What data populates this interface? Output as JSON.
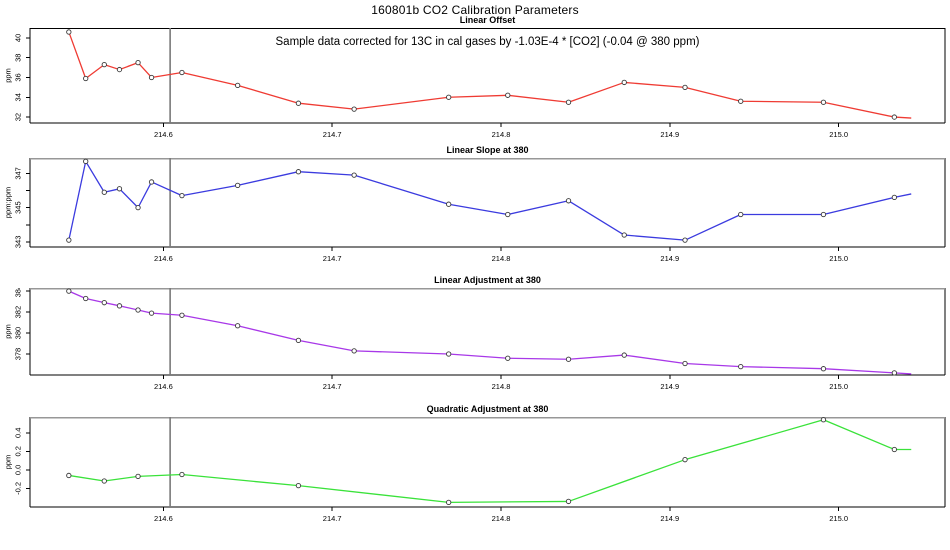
{
  "page": {
    "title": "160801b   CO2 Calibration Parameters",
    "annotation": "Sample data corrected for 13C in cal gases by -1.03E-4 * [CO2] (-0.04 @ 380 ppm)"
  },
  "colors": {
    "offset_line": "#ef3b33",
    "slope_line": "#3b3bdf",
    "linear_adj_line": "#a838e8",
    "quad_adj_line": "#3ae23a",
    "marker_stroke": "#3a3a3a",
    "reference_line": "#7a7a7a",
    "axis": "#000000"
  },
  "chart_data": [
    {
      "type": "line",
      "title": "Linear Offset",
      "ylabel": "ppm",
      "annotation": "Sample data corrected for 13C in cal gases by -1.03E-4 * [CO2] (-0.04 @ 380 ppm)",
      "line_color": "#ef3b33",
      "xlim": [
        214.521,
        215.063
      ],
      "ylim": [
        31.4,
        41.0
      ],
      "xticks": [
        214.6,
        214.7,
        214.8,
        214.9,
        215.0
      ],
      "xtick_labels": [
        "214.6",
        "214.7",
        "214.8",
        "214.9",
        "215.0"
      ],
      "yticks": [
        32,
        34,
        36,
        38,
        40
      ],
      "ytick_labels": [
        "32",
        "34",
        "36",
        "38",
        "40"
      ],
      "vline_x": 214.604,
      "x": [
        214.544,
        214.554,
        214.565,
        214.574,
        214.585,
        214.593,
        214.611,
        214.644,
        214.68,
        214.713,
        214.769,
        214.804,
        214.84,
        214.873,
        214.909,
        214.942,
        214.991,
        215.033
      ],
      "y": [
        40.6,
        35.9,
        37.3,
        36.8,
        37.5,
        36.0,
        36.5,
        35.2,
        33.4,
        32.8,
        34.0,
        34.2,
        33.5,
        35.5,
        35.0,
        33.6,
        33.5,
        32.0
      ],
      "tail": {
        "x": 215.043,
        "y": 31.9
      }
    },
    {
      "type": "line",
      "title": "Linear Slope at 380",
      "ylabel": "ppm:ppm",
      "line_color": "#3b3bdf",
      "xlim": [
        214.521,
        215.063
      ],
      "ylim": [
        342.7,
        347.9
      ],
      "xticks": [
        214.6,
        214.7,
        214.8,
        214.9,
        215.0
      ],
      "xtick_labels": [
        "214.6",
        "214.7",
        "214.8",
        "214.9",
        "215.0"
      ],
      "yticks": [
        343,
        344,
        345,
        346,
        347
      ],
      "ytick_labels": [
        "343",
        "",
        "345",
        "",
        "347"
      ],
      "vline_x": 214.604,
      "x": [
        214.544,
        214.554,
        214.565,
        214.574,
        214.585,
        214.593,
        214.611,
        214.644,
        214.68,
        214.713,
        214.769,
        214.804,
        214.84,
        214.873,
        214.909,
        214.942,
        214.991,
        215.033
      ],
      "y": [
        343.1,
        347.7,
        345.9,
        346.1,
        345.0,
        346.5,
        345.7,
        346.3,
        347.1,
        346.9,
        345.2,
        344.6,
        345.4,
        343.4,
        343.1,
        344.6,
        344.6,
        345.6
      ],
      "tail": {
        "x": 215.043,
        "y": 345.8
      }
    },
    {
      "type": "line",
      "title": "Linear Adjustment at 380",
      "ylabel": "ppm",
      "line_color": "#a838e8",
      "xlim": [
        214.521,
        215.063
      ],
      "ylim": [
        376.0,
        384.3
      ],
      "xticks": [
        214.6,
        214.7,
        214.8,
        214.9,
        215.0
      ],
      "xtick_labels": [
        "214.6",
        "214.7",
        "214.8",
        "214.9",
        "215.0"
      ],
      "yticks": [
        378,
        380,
        382,
        384
      ],
      "ytick_labels": [
        "378",
        "380",
        "382",
        "384"
      ],
      "vline_x": 214.604,
      "x": [
        214.544,
        214.554,
        214.565,
        214.574,
        214.585,
        214.593,
        214.611,
        214.644,
        214.68,
        214.713,
        214.769,
        214.804,
        214.84,
        214.873,
        214.909,
        214.942,
        214.991,
        215.033
      ],
      "y": [
        384.0,
        383.3,
        382.9,
        382.6,
        382.2,
        381.9,
        381.7,
        380.7,
        379.3,
        378.3,
        378.0,
        377.6,
        377.5,
        377.9,
        377.1,
        376.8,
        376.6,
        376.2
      ],
      "tail": {
        "x": 215.043,
        "y": 376.1
      }
    },
    {
      "type": "line",
      "title": "Quadratic Adjustment at 380",
      "ylabel": "ppm",
      "line_color": "#3ae23a",
      "xlim": [
        214.521,
        215.063
      ],
      "ylim": [
        -0.4,
        0.57
      ],
      "xticks": [
        214.6,
        214.7,
        214.8,
        214.9,
        215.0
      ],
      "xtick_labels": [
        "214.6",
        "214.7",
        "214.8",
        "214.9",
        "215.0"
      ],
      "yticks": [
        -0.2,
        0.0,
        0.2,
        0.4
      ],
      "ytick_labels": [
        "-0.2",
        "0.0",
        "0.2",
        "0.4"
      ],
      "vline_x": 214.604,
      "x": [
        214.544,
        214.565,
        214.585,
        214.611,
        214.68,
        214.769,
        214.84,
        214.909,
        214.991,
        215.033
      ],
      "y": [
        -0.06,
        -0.12,
        -0.07,
        -0.05,
        -0.17,
        -0.35,
        -0.34,
        0.11,
        0.54,
        0.22
      ],
      "tail": {
        "x": 215.043,
        "y": 0.22
      }
    }
  ]
}
